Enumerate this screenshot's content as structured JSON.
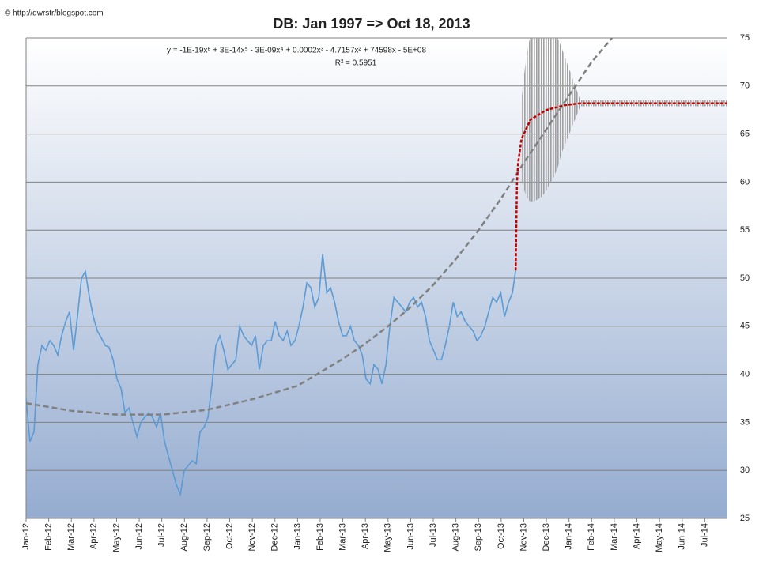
{
  "chart_data": {
    "type": "line",
    "watermark": "© http://dwrstr/blogspot.com",
    "title": "DB: Jan 1997 => Oct 18, 2013",
    "equation": "y = -1E-19x⁶ + 3E-14x⁵ - 3E-09x⁴ + 0.0002x³ - 4.7157x² + 74598x - 5E+08",
    "r_squared": "R² = 0.5951",
    "xlim": [
      0,
      31
    ],
    "xticks": [
      {
        "value": 0,
        "label": "Jan-12"
      },
      {
        "value": 1,
        "label": "Feb-12"
      },
      {
        "value": 2,
        "label": "Mar-12"
      },
      {
        "value": 3,
        "label": "Apr-12"
      },
      {
        "value": 4,
        "label": "May-12"
      },
      {
        "value": 5,
        "label": "Jun-12"
      },
      {
        "value": 6,
        "label": "Jul-12"
      },
      {
        "value": 7,
        "label": "Aug-12"
      },
      {
        "value": 8,
        "label": "Sep-12"
      },
      {
        "value": 9,
        "label": "Oct-12"
      },
      {
        "value": 10,
        "label": "Nov-12"
      },
      {
        "value": 11,
        "label": "Dec-12"
      },
      {
        "value": 12,
        "label": "Jan-13"
      },
      {
        "value": 13,
        "label": "Feb-13"
      },
      {
        "value": 14,
        "label": "Mar-13"
      },
      {
        "value": 15,
        "label": "Apr-13"
      },
      {
        "value": 16,
        "label": "May-13"
      },
      {
        "value": 17,
        "label": "Jun-13"
      },
      {
        "value": 18,
        "label": "Jul-13"
      },
      {
        "value": 19,
        "label": "Aug-13"
      },
      {
        "value": 20,
        "label": "Sep-13"
      },
      {
        "value": 21,
        "label": "Oct-13"
      },
      {
        "value": 22,
        "label": "Nov-13"
      },
      {
        "value": 23,
        "label": "Dec-13"
      },
      {
        "value": 24,
        "label": "Jan-14"
      },
      {
        "value": 25,
        "label": "Feb-14"
      },
      {
        "value": 26,
        "label": "Mar-14"
      },
      {
        "value": 27,
        "label": "Apr-14"
      },
      {
        "value": 28,
        "label": "May-14"
      },
      {
        "value": 29,
        "label": "Jun-14"
      },
      {
        "value": 30,
        "label": "Jul-14"
      }
    ],
    "ylim": [
      25,
      75
    ],
    "yticks": [
      25,
      30,
      35,
      40,
      45,
      50,
      55,
      60,
      65,
      70,
      75
    ],
    "grid": true,
    "series": [
      {
        "kind": "range",
        "color": "#a0a0a0",
        "x": [
          21.92,
          22.1,
          22.27,
          22.45,
          22.62,
          22.8,
          22.97,
          23.15,
          23.32,
          23.5,
          23.67,
          24.5,
          31
        ],
        "low": [
          60,
          58.5,
          58,
          58,
          58.2,
          58.5,
          59,
          59.8,
          60.5,
          61.5,
          63,
          67.9,
          67.9
        ],
        "high": [
          69,
          73,
          75,
          75,
          75,
          75,
          75,
          75,
          75,
          75,
          74,
          68.5,
          68.5
        ]
      },
      {
        "kind": "line",
        "color": "#5b9bd5",
        "dashed": false,
        "x": [
          0,
          0.17,
          0.35,
          0.52,
          0.7,
          0.87,
          1.05,
          1.22,
          1.4,
          1.57,
          1.75,
          1.92,
          2.1,
          2.27,
          2.45,
          2.62,
          2.8,
          2.97,
          3.15,
          3.32,
          3.5,
          3.67,
          3.85,
          4.02,
          4.2,
          4.37,
          4.55,
          4.72,
          4.9,
          5.07,
          5.24,
          5.42,
          5.59,
          5.77,
          5.94,
          6.12,
          6.29,
          6.47,
          6.64,
          6.82,
          6.99,
          7.17,
          7.34,
          7.52,
          7.69,
          7.87,
          8.04,
          8.22,
          8.39,
          8.57,
          8.74,
          8.92,
          9.09,
          9.27,
          9.44,
          9.62,
          9.79,
          9.97,
          10.14,
          10.31,
          10.49,
          10.66,
          10.84,
          11.01,
          11.19,
          11.36,
          11.54,
          11.71,
          11.89,
          12.06,
          12.24,
          12.41,
          12.59,
          12.76,
          12.94,
          13.11,
          13.29,
          13.46,
          13.64,
          13.81,
          13.99,
          14.16,
          14.34,
          14.51,
          14.69,
          14.86,
          15.03,
          15.21,
          15.38,
          15.56,
          15.73,
          15.91,
          16.08,
          16.26,
          16.43,
          16.61,
          16.78,
          16.96,
          17.13,
          17.31,
          17.48,
          17.66,
          17.83,
          18.01,
          18.18,
          18.36,
          18.53,
          18.71,
          18.88,
          19.06,
          19.23,
          19.41,
          19.58,
          19.76,
          19.93,
          20.1,
          20.28,
          20.45,
          20.63,
          20.8,
          20.98,
          21.15,
          21.33,
          21.5,
          21.64
        ],
        "values": [
          37.5,
          33,
          34,
          41,
          43,
          42.5,
          43.5,
          43,
          42,
          44,
          45.5,
          46.5,
          42.5,
          46,
          50,
          50.7,
          48,
          46,
          44.5,
          43.8,
          43,
          42.8,
          41.5,
          39.5,
          38.5,
          36,
          36.5,
          35,
          33.5,
          35,
          35.5,
          36,
          35.5,
          34.5,
          36,
          33,
          31.5,
          30,
          28.5,
          27.5,
          30,
          30.5,
          31,
          30.7,
          34,
          34.5,
          35.5,
          39,
          43,
          44,
          42.5,
          40.5,
          41,
          41.5,
          45,
          44,
          43.5,
          43,
          44,
          40.5,
          43,
          43.5,
          43.5,
          45.5,
          44,
          43.5,
          44.5,
          43,
          43.5,
          45,
          47,
          49.5,
          49,
          47,
          48,
          52.5,
          48.5,
          49,
          47.5,
          45.5,
          44,
          44,
          45,
          43.5,
          43,
          42,
          39.5,
          39,
          41,
          40.5,
          39,
          41,
          45,
          48,
          47.5,
          47,
          46.5,
          47.5,
          48,
          47,
          47.5,
          46,
          43.5,
          42.5,
          41.5,
          41.5,
          43,
          45,
          47.5,
          46,
          46.5,
          45.5,
          45,
          44.5,
          43.5,
          44,
          45,
          46.5,
          48,
          47.5,
          48.5,
          46,
          47.5,
          48.5,
          50.8
        ]
      },
      {
        "kind": "line",
        "color": "#808080",
        "dashed": true,
        "x": [
          0,
          2,
          4,
          6,
          8,
          10,
          12,
          14,
          15,
          16,
          17,
          18,
          19,
          20,
          21,
          22,
          23,
          24,
          25,
          25.9
        ],
        "values": [
          37,
          36.2,
          35.8,
          35.8,
          36.3,
          37.4,
          38.8,
          41.6,
          43.2,
          45,
          47,
          49.3,
          52,
          55,
          58.3,
          62,
          65.5,
          69,
          72.5,
          75
        ]
      },
      {
        "kind": "line",
        "color": "#c00000",
        "dashed": true,
        "x": [
          21.64,
          21.7,
          21.75,
          21.9,
          22.3,
          23,
          23.8,
          24.5,
          31
        ],
        "values": [
          50.8,
          60,
          62,
          64.5,
          66.5,
          67.5,
          68,
          68.2,
          68.2
        ]
      }
    ]
  }
}
